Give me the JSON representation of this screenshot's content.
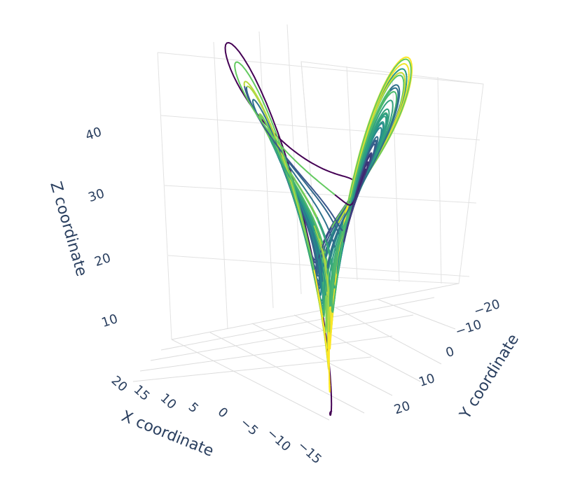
{
  "chart_data": {
    "type": "line3d",
    "title": "",
    "x_axis": {
      "title": "X coordinate",
      "ticks": [
        "20",
        "15",
        "10",
        "5",
        "0",
        "−5",
        "−10",
        "−15"
      ]
    },
    "y_axis": {
      "title": "Y coordinate",
      "ticks": [
        "−20",
        "−10",
        "0",
        "10",
        "20"
      ]
    },
    "z_axis": {
      "title": "Z coordinate",
      "ticks": [
        "10",
        "20",
        "30",
        "40"
      ]
    },
    "system": "lorenz",
    "params": {
      "sigma": 10,
      "rho": 28,
      "beta": 2.6667
    },
    "initial_state": [
      0,
      1,
      1.05
    ],
    "colorscale": "viridis",
    "colorscale_stops": [
      "#440154",
      "#3b528b",
      "#21918c",
      "#5ec962",
      "#fde725"
    ],
    "grid": true
  }
}
